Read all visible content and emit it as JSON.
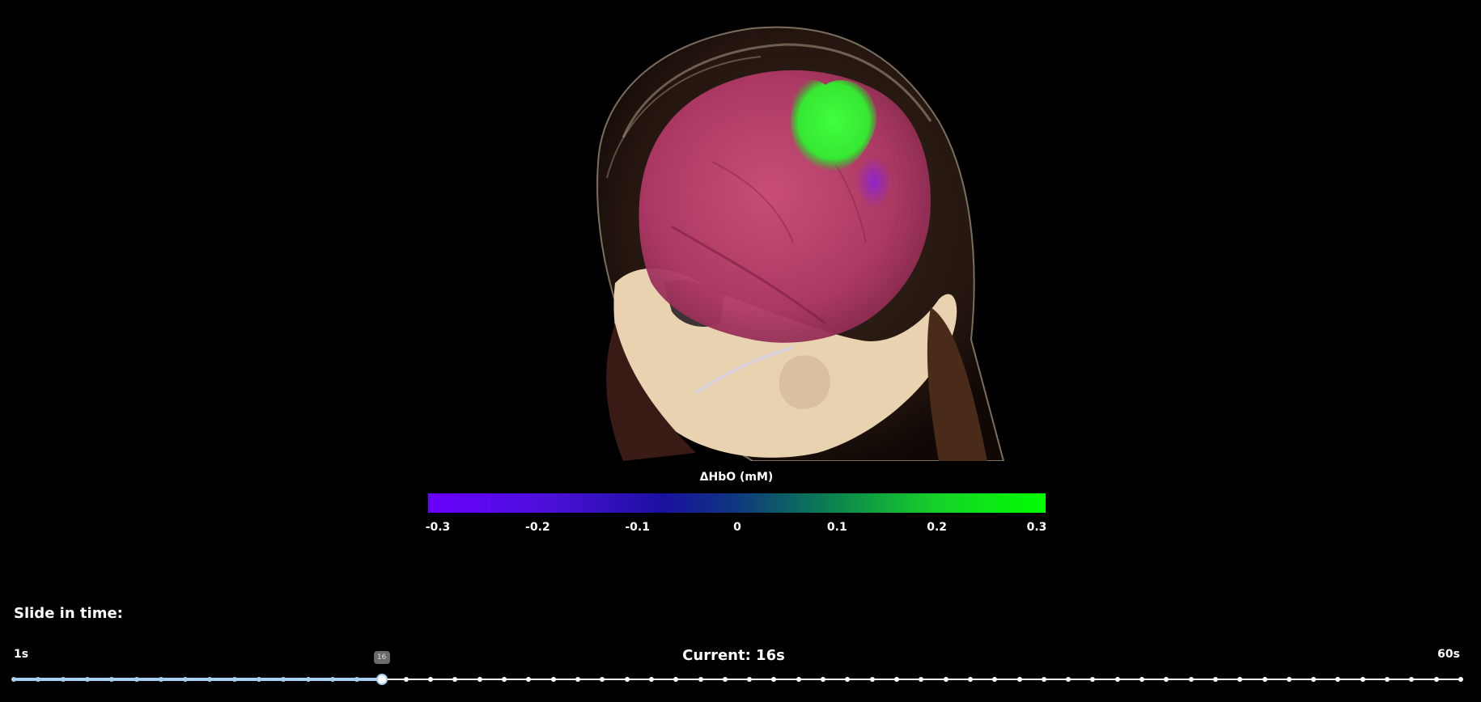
{
  "viewer": {
    "description_icon": "brain-head-render"
  },
  "colorbar": {
    "title": "ΔHbO (mM)",
    "ticks": [
      "-0.3",
      "-0.2",
      "-0.1",
      "0",
      "0.1",
      "0.2",
      "0.3"
    ],
    "colors": {
      "min": "#6a00ff",
      "mid": "#0e3880",
      "max": "#00ff00"
    }
  },
  "time_slider": {
    "title": "Slide in time:",
    "min_label": "1s",
    "max_label": "60s",
    "current_label": "Current: 16s",
    "tooltip": "16",
    "min": 1,
    "max": 60,
    "value": 16,
    "accent": "#a8d0f0"
  }
}
